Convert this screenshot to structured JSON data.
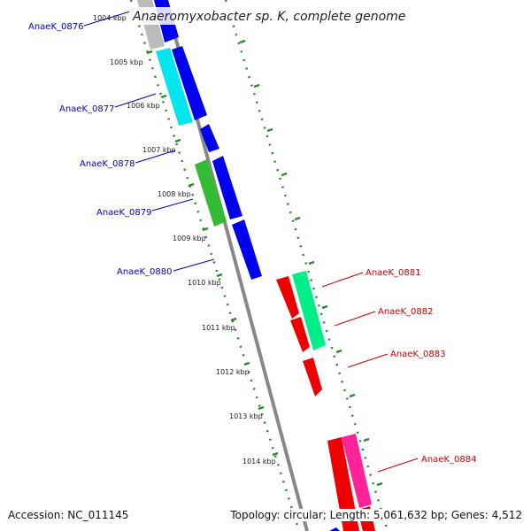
{
  "title": "Anaeromyxobacter sp. K, complete genome",
  "footer": {
    "accession": "Accession: NC_011145",
    "topology": "Topology: circular; Length: 5,061,632 bp; Genes: 4,512"
  },
  "colors": {
    "forward_strand": "#0000ee",
    "reverse_strand": "#ee0000",
    "forward_label": "#0000cc",
    "reverse_label": "#cc0000",
    "backbone": "#888888",
    "tick": "#2a8a2a"
  },
  "kbp_ticks": [
    "1004 kbp",
    "1005 kbp",
    "1006 kbp",
    "1007 kbp",
    "1008 kbp",
    "1009 kbp",
    "1010 kbp",
    "1011 kbp",
    "1012 kbp",
    "1013 kbp",
    "1014 kbp"
  ],
  "forward_labels": [
    "AnaeK_0876",
    "AnaeK_0877",
    "AnaeK_0878",
    "AnaeK_0879",
    "AnaeK_0880"
  ],
  "reverse_labels": [
    "AnaeK_0881",
    "AnaeK_0882",
    "AnaeK_0883",
    "AnaeK_0884"
  ]
}
